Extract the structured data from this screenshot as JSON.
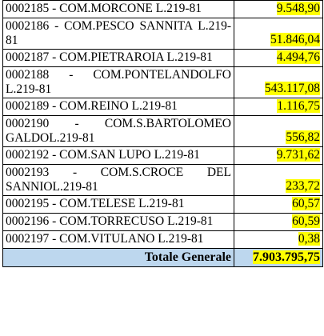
{
  "table": {
    "rows": [
      {
        "description": "0002185 - COM.MORCONE L.219-81",
        "amount": "9.548,90"
      },
      {
        "description": "0002186 - COM.PESCO SANNITA L.219-81",
        "amount": "51.846,04"
      },
      {
        "description": "0002187 - COM.PIETRAROIA L.219-81",
        "amount": "4.494,76"
      },
      {
        "description": "0002188 - COM.PONTELANDOLFO L.219-81",
        "amount": "543.117,08"
      },
      {
        "description": "0002189 - COM.REINO L.219-81",
        "amount": "1.116,75"
      },
      {
        "description": "0002190 - COM.S.BARTOLOMEO GALDOL.219-81",
        "amount": "556,82"
      },
      {
        "description": "0002192 - COM.SAN LUPO L.219-81",
        "amount": "9.731,62"
      },
      {
        "description": "0002193 - COM.S.CROCE DEL SANNIOL.219-81",
        "amount": "233,72"
      },
      {
        "description": "0002195 - COM.TELESE L.219-81",
        "amount": "60,57"
      },
      {
        "description": "0002196 - COM.TORRECUSO L.219-81",
        "amount": "60,59"
      },
      {
        "description": "0002197 - COM.VITULANO L.219-81",
        "amount": "0,38"
      }
    ],
    "total": {
      "label": "Totale Generale",
      "amount": "7.903.795,75"
    }
  }
}
